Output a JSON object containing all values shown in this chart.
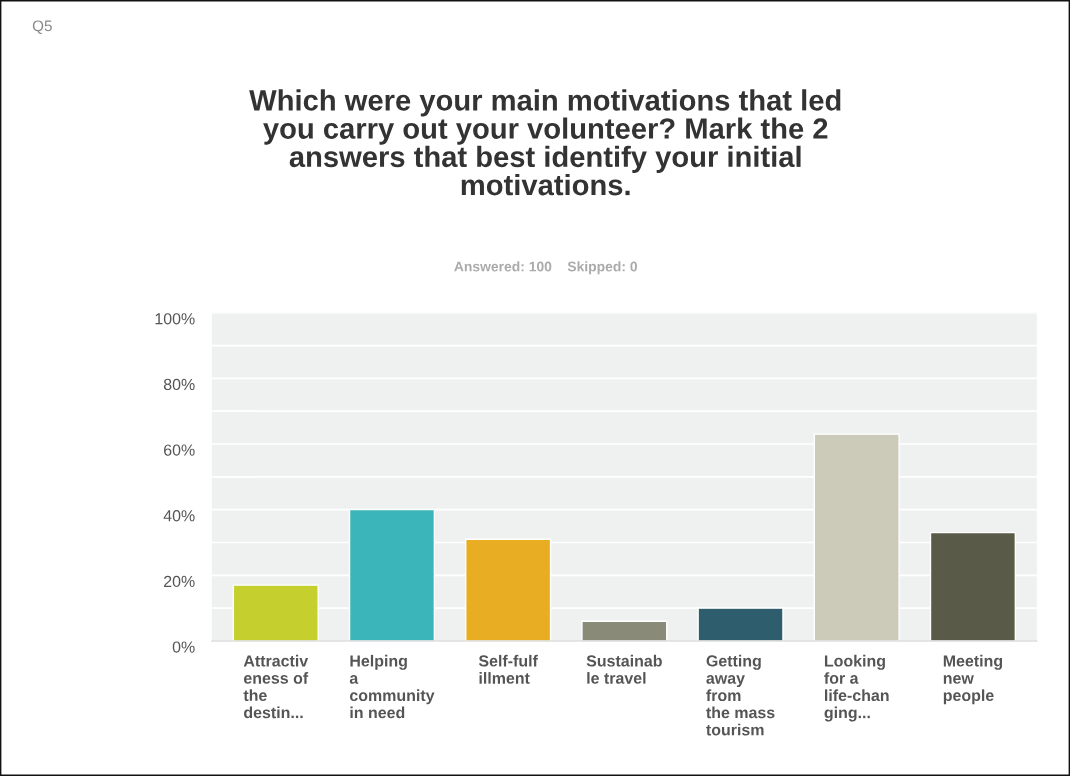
{
  "chart_data": {
    "type": "bar",
    "title": "Which were your main motivations that led\nyou carry out your volunteer? Mark the 2\nanswers that best identify your initial\nmotivations.",
    "subtitle": "Answered: 100    Skipped: 0",
    "annotations": [
      "Q5"
    ],
    "categories": [
      "Attractiv\neness of\nthe\ndestin...",
      "Helping\na\ncommunity\nin need",
      "Self-fulf\nillment",
      "Sustainab\nle travel",
      "Getting\naway\nfrom\nthe mass\ntourism",
      "Looking\nfor a\nlife-chan\nging...",
      "Meeting\nnew\npeople"
    ],
    "values": [
      17,
      40,
      31,
      6,
      10,
      63,
      33
    ],
    "colors": [
      "#c5cf2e",
      "#3bb5ba",
      "#e9ad23",
      "#898b78",
      "#2e5e6d",
      "#cccbb9",
      "#5a5a48"
    ],
    "ylim": [
      0,
      100
    ],
    "yticks": [
      {
        "value": 0,
        "label": "0%"
      },
      {
        "value": 10,
        "label": null
      },
      {
        "value": 20,
        "label": "20%"
      },
      {
        "value": 30,
        "label": null
      },
      {
        "value": 40,
        "label": "40%"
      },
      {
        "value": 50,
        "label": null
      },
      {
        "value": 60,
        "label": "60%"
      },
      {
        "value": 70,
        "label": null
      },
      {
        "value": 80,
        "label": "80%"
      },
      {
        "value": 90,
        "label": null
      },
      {
        "value": 100,
        "label": "100%"
      }
    ],
    "grid": "y",
    "legend": false
  }
}
